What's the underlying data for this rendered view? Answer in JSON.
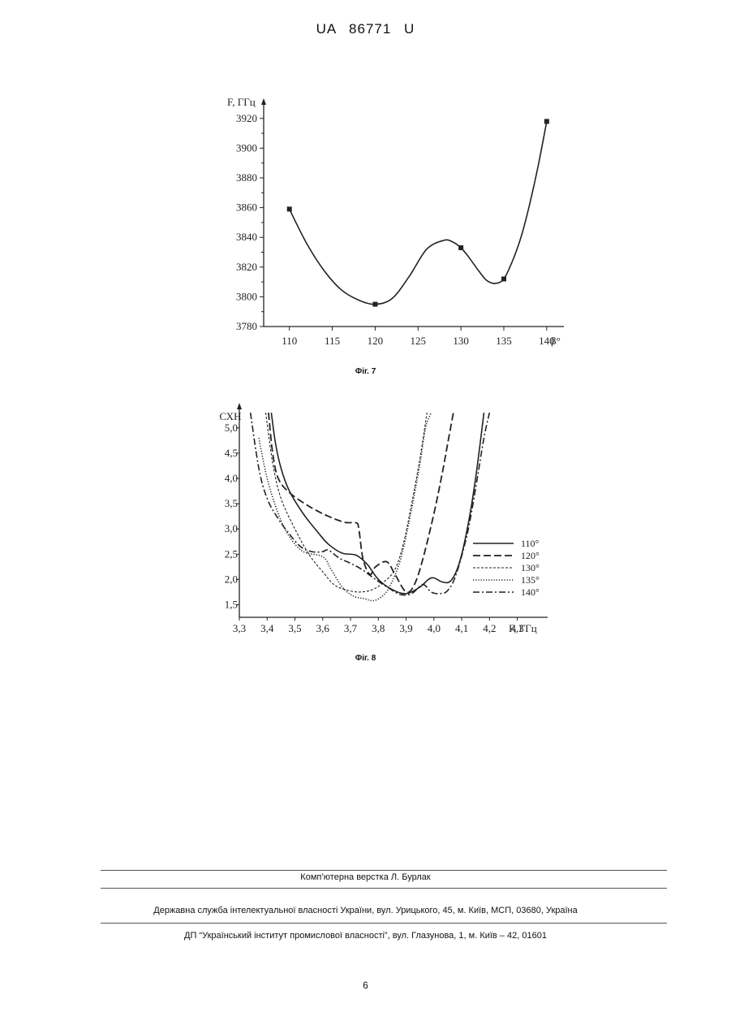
{
  "header": {
    "doc_number": "UA  86771  U"
  },
  "figure7": {
    "caption": "Фіг. 7",
    "chart_data": {
      "type": "line",
      "xlabel": "β°",
      "ylabel": "F, ГГц",
      "x_ticks": [
        "110",
        "115",
        "120",
        "125",
        "130",
        "135",
        "140"
      ],
      "y_ticks": [
        "3780",
        "3800",
        "3820",
        "3840",
        "3860",
        "3880",
        "3900",
        "3920"
      ],
      "xlim": [
        107,
        142
      ],
      "ylim": [
        3780,
        3927
      ],
      "x": [
        110,
        120,
        130,
        135,
        140
      ],
      "values": [
        3859,
        3795,
        3833,
        3812,
        3918
      ],
      "curve": [
        [
          110,
          3859
        ],
        [
          112,
          3836
        ],
        [
          114,
          3818
        ],
        [
          116,
          3805
        ],
        [
          118,
          3798
        ],
        [
          120,
          3795
        ],
        [
          122,
          3799
        ],
        [
          124,
          3814
        ],
        [
          126,
          3832
        ],
        [
          128,
          3838
        ],
        [
          129,
          3837
        ],
        [
          130,
          3833
        ],
        [
          131,
          3826
        ],
        [
          132,
          3818
        ],
        [
          133,
          3811
        ],
        [
          134,
          3809
        ],
        [
          135,
          3812
        ],
        [
          136,
          3824
        ],
        [
          137,
          3840
        ],
        [
          138,
          3862
        ],
        [
          139,
          3888
        ],
        [
          140,
          3918
        ]
      ]
    }
  },
  "figure8": {
    "caption": "Фіг. 8",
    "chart_data": {
      "type": "line",
      "xlabel": "F, ГГц",
      "ylabel": "КСХН",
      "x_ticks": [
        "3,3",
        "3,4",
        "3,5",
        "3,6",
        "3,7",
        "3,8",
        "3,9",
        "4,0",
        "4,1",
        "4,2",
        "4,3"
      ],
      "y_ticks": [
        "1,5",
        "2,0",
        "2,5",
        "3,0",
        "3,5",
        "4,0",
        "4,5",
        "5,0"
      ],
      "xlim": [
        3.3,
        4.38
      ],
      "ylim": [
        1.25,
        5.35
      ],
      "series": [
        {
          "name": "110°",
          "style": "solid",
          "points": [
            [
              3.415,
              5.3
            ],
            [
              3.43,
              4.7
            ],
            [
              3.45,
              4.2
            ],
            [
              3.48,
              3.75
            ],
            [
              3.53,
              3.3
            ],
            [
              3.58,
              2.95
            ],
            [
              3.62,
              2.7
            ],
            [
              3.67,
              2.52
            ],
            [
              3.72,
              2.48
            ],
            [
              3.76,
              2.3
            ],
            [
              3.8,
              2.0
            ],
            [
              3.85,
              1.8
            ],
            [
              3.9,
              1.72
            ],
            [
              3.95,
              1.85
            ],
            [
              3.98,
              2.0
            ],
            [
              4.0,
              2.03
            ],
            [
              4.03,
              1.95
            ],
            [
              4.06,
              1.97
            ],
            [
              4.09,
              2.3
            ],
            [
              4.12,
              3.0
            ],
            [
              4.15,
              4.0
            ],
            [
              4.18,
              5.3
            ]
          ]
        },
        {
          "name": "120°",
          "style": "dashed",
          "points": [
            [
              3.405,
              5.3
            ],
            [
              3.42,
              4.5
            ],
            [
              3.44,
              4.0
            ],
            [
              3.48,
              3.72
            ],
            [
              3.55,
              3.45
            ],
            [
              3.62,
              3.25
            ],
            [
              3.68,
              3.13
            ],
            [
              3.72,
              3.12
            ],
            [
              3.73,
              3.0
            ],
            [
              3.745,
              2.4
            ],
            [
              3.77,
              2.1
            ],
            [
              3.79,
              2.25
            ],
            [
              3.83,
              2.35
            ],
            [
              3.86,
              2.1
            ],
            [
              3.9,
              1.75
            ],
            [
              3.93,
              1.9
            ],
            [
              3.96,
              2.4
            ],
            [
              4.0,
              3.3
            ],
            [
              4.03,
              4.1
            ],
            [
              4.05,
              4.7
            ],
            [
              4.07,
              5.3
            ]
          ]
        },
        {
          "name": "130°",
          "style": "fine-dashed",
          "points": [
            [
              3.395,
              5.3
            ],
            [
              3.42,
              4.3
            ],
            [
              3.45,
              3.6
            ],
            [
              3.5,
              3.0
            ],
            [
              3.55,
              2.5
            ],
            [
              3.6,
              2.15
            ],
            [
              3.64,
              1.9
            ],
            [
              3.68,
              1.8
            ],
            [
              3.73,
              1.75
            ],
            [
              3.78,
              1.8
            ],
            [
              3.82,
              1.95
            ],
            [
              3.86,
              2.2
            ],
            [
              3.89,
              2.7
            ],
            [
              3.92,
              3.5
            ],
            [
              3.95,
              4.4
            ],
            [
              3.975,
              5.3
            ]
          ]
        },
        {
          "name": "135°",
          "style": "dotted",
          "points": [
            [
              3.37,
              4.8
            ],
            [
              3.4,
              4.0
            ],
            [
              3.44,
              3.3
            ],
            [
              3.48,
              2.85
            ],
            [
              3.53,
              2.55
            ],
            [
              3.6,
              2.45
            ],
            [
              3.63,
              2.2
            ],
            [
              3.67,
              1.85
            ],
            [
              3.71,
              1.67
            ],
            [
              3.75,
              1.62
            ],
            [
              3.78,
              1.58
            ],
            [
              3.81,
              1.65
            ],
            [
              3.84,
              1.85
            ],
            [
              3.88,
              2.4
            ],
            [
              3.92,
              3.4
            ],
            [
              3.95,
              4.3
            ],
            [
              3.97,
              5.0
            ],
            [
              3.99,
              5.3
            ]
          ]
        },
        {
          "name": "140°",
          "style": "dash-dot",
          "points": [
            [
              3.34,
              5.3
            ],
            [
              3.37,
              4.2
            ],
            [
              3.4,
              3.6
            ],
            [
              3.44,
              3.2
            ],
            [
              3.48,
              2.9
            ],
            [
              3.52,
              2.65
            ],
            [
              3.56,
              2.55
            ],
            [
              3.6,
              2.55
            ],
            [
              3.62,
              2.58
            ],
            [
              3.66,
              2.42
            ],
            [
              3.7,
              2.32
            ],
            [
              3.74,
              2.2
            ],
            [
              3.79,
              2.0
            ],
            [
              3.84,
              1.82
            ],
            [
              3.88,
              1.7
            ],
            [
              3.92,
              1.72
            ],
            [
              3.96,
              1.9
            ],
            [
              3.99,
              1.75
            ],
            [
              4.02,
              1.72
            ],
            [
              4.05,
              1.78
            ],
            [
              4.08,
              2.1
            ],
            [
              4.12,
              2.9
            ],
            [
              4.15,
              3.8
            ],
            [
              4.18,
              4.8
            ],
            [
              4.2,
              5.3
            ]
          ]
        }
      ]
    }
  },
  "footer": {
    "layout_credit": "Комп’ютерна верстка Л. Бурлак",
    "agency": "Державна служба інтелектуальної власності України, вул. Урицького, 45, м. Київ, МСП, 03680, Україна",
    "institute": "ДП “Український інститут промислової власності”, вул. Глазунова, 1, м. Київ – 42, 01601",
    "page_number": "6"
  }
}
